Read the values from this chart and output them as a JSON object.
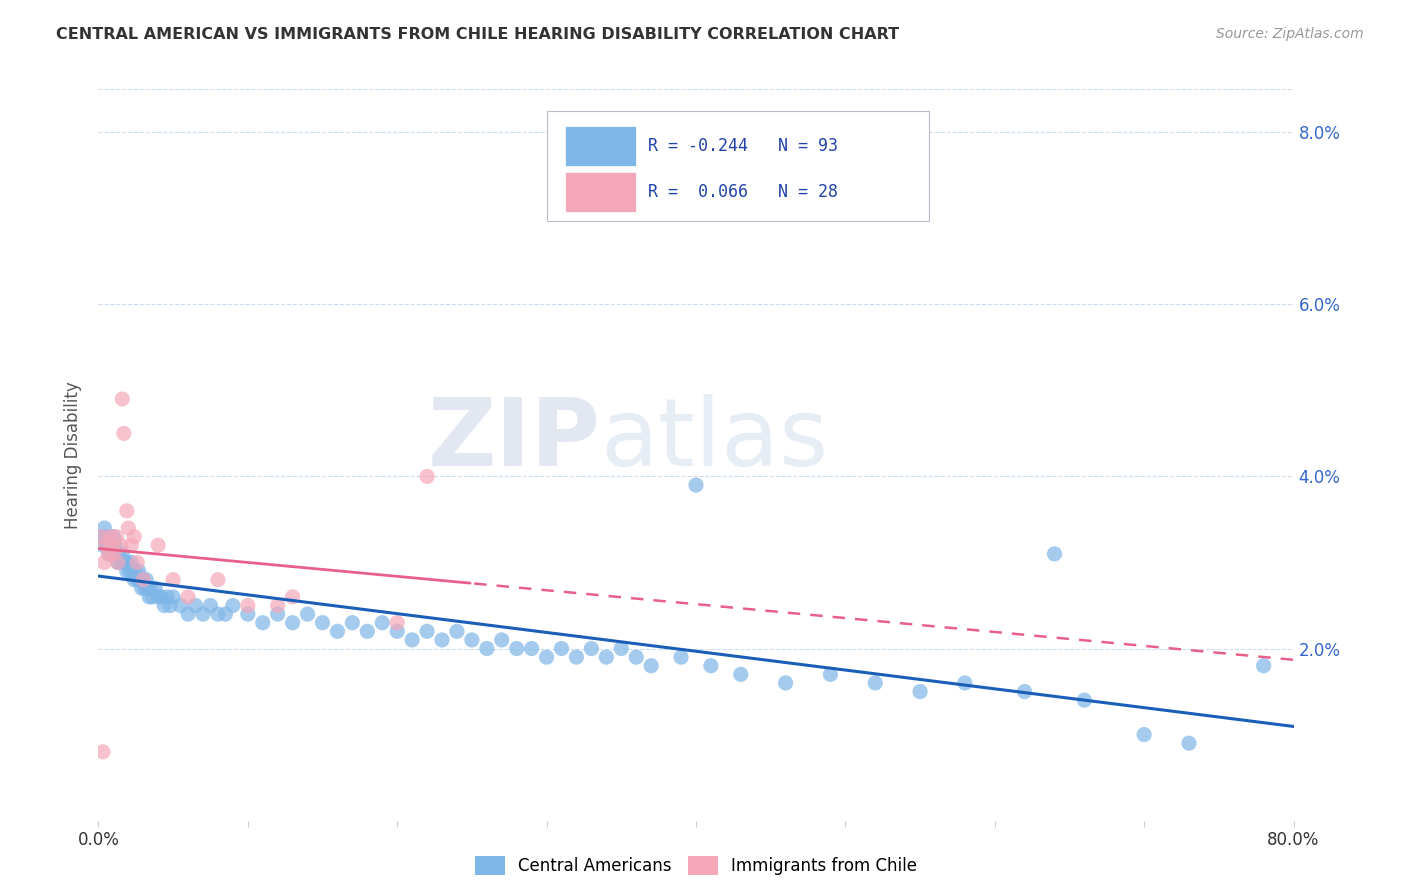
{
  "title": "CENTRAL AMERICAN VS IMMIGRANTS FROM CHILE HEARING DISABILITY CORRELATION CHART",
  "source": "Source: ZipAtlas.com",
  "ylabel": "Hearing Disability",
  "xlim": [
    0,
    0.8
  ],
  "ylim": [
    0,
    0.085
  ],
  "yticks": [
    0.0,
    0.02,
    0.04,
    0.06,
    0.08
  ],
  "ytick_labels": [
    "",
    "2.0%",
    "4.0%",
    "6.0%",
    "8.0%"
  ],
  "xticks": [
    0.0,
    0.1,
    0.2,
    0.3,
    0.4,
    0.5,
    0.6,
    0.7,
    0.8
  ],
  "xtick_labels": [
    "0.0%",
    "",
    "",
    "",
    "",
    "",
    "",
    "",
    "80.0%"
  ],
  "blue_R": -0.244,
  "blue_N": 93,
  "pink_R": 0.066,
  "pink_N": 28,
  "blue_color": "#7EB6E8",
  "pink_color": "#F4A7B9",
  "blue_line_color": "#1A5EB8",
  "pink_line_color": "#E8608A",
  "watermark_zip": "ZIP",
  "watermark_atlas": "atlas",
  "legend_label_blue": "Central Americans",
  "legend_label_pink": "Immigrants from Chile",
  "blue_x": [
    0.002,
    0.003,
    0.004,
    0.005,
    0.006,
    0.007,
    0.008,
    0.009,
    0.01,
    0.011,
    0.012,
    0.013,
    0.014,
    0.015,
    0.016,
    0.017,
    0.018,
    0.019,
    0.02,
    0.021,
    0.022,
    0.023,
    0.024,
    0.025,
    0.026,
    0.027,
    0.028,
    0.029,
    0.03,
    0.031,
    0.032,
    0.033,
    0.034,
    0.035,
    0.036,
    0.038,
    0.04,
    0.042,
    0.044,
    0.046,
    0.048,
    0.05,
    0.055,
    0.06,
    0.065,
    0.07,
    0.075,
    0.08,
    0.085,
    0.09,
    0.1,
    0.11,
    0.12,
    0.13,
    0.14,
    0.15,
    0.16,
    0.17,
    0.18,
    0.19,
    0.2,
    0.21,
    0.22,
    0.23,
    0.24,
    0.25,
    0.26,
    0.27,
    0.28,
    0.29,
    0.3,
    0.31,
    0.32,
    0.33,
    0.34,
    0.35,
    0.36,
    0.37,
    0.39,
    0.41,
    0.43,
    0.46,
    0.49,
    0.52,
    0.55,
    0.58,
    0.62,
    0.66,
    0.7,
    0.73,
    0.4,
    0.64,
    0.78
  ],
  "blue_y": [
    0.033,
    0.032,
    0.034,
    0.033,
    0.032,
    0.031,
    0.032,
    0.031,
    0.033,
    0.032,
    0.031,
    0.03,
    0.031,
    0.03,
    0.031,
    0.03,
    0.03,
    0.029,
    0.03,
    0.029,
    0.03,
    0.029,
    0.028,
    0.029,
    0.028,
    0.029,
    0.028,
    0.027,
    0.028,
    0.027,
    0.028,
    0.027,
    0.026,
    0.027,
    0.026,
    0.027,
    0.026,
    0.026,
    0.025,
    0.026,
    0.025,
    0.026,
    0.025,
    0.024,
    0.025,
    0.024,
    0.025,
    0.024,
    0.024,
    0.025,
    0.024,
    0.023,
    0.024,
    0.023,
    0.024,
    0.023,
    0.022,
    0.023,
    0.022,
    0.023,
    0.022,
    0.021,
    0.022,
    0.021,
    0.022,
    0.021,
    0.02,
    0.021,
    0.02,
    0.02,
    0.019,
    0.02,
    0.019,
    0.02,
    0.019,
    0.02,
    0.019,
    0.018,
    0.019,
    0.018,
    0.017,
    0.016,
    0.017,
    0.016,
    0.015,
    0.016,
    0.015,
    0.014,
    0.01,
    0.009,
    0.039,
    0.031,
    0.018
  ],
  "pink_x": [
    0.002,
    0.004,
    0.005,
    0.007,
    0.008,
    0.009,
    0.01,
    0.012,
    0.013,
    0.015,
    0.016,
    0.017,
    0.019,
    0.02,
    0.022,
    0.024,
    0.026,
    0.03,
    0.04,
    0.05,
    0.06,
    0.08,
    0.1,
    0.12,
    0.2,
    0.22,
    0.003,
    0.13
  ],
  "pink_y": [
    0.033,
    0.03,
    0.032,
    0.031,
    0.033,
    0.032,
    0.031,
    0.033,
    0.03,
    0.032,
    0.049,
    0.045,
    0.036,
    0.034,
    0.032,
    0.033,
    0.03,
    0.028,
    0.032,
    0.028,
    0.026,
    0.028,
    0.025,
    0.025,
    0.023,
    0.04,
    0.008,
    0.026
  ]
}
